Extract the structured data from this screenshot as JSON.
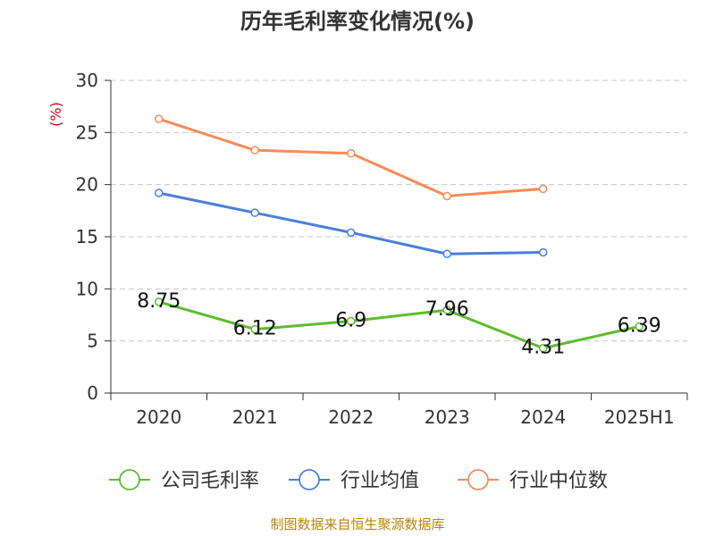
{
  "title": "历年毛利率变化情况(%)",
  "source": "制图数据来自恒生聚源数据库",
  "chart_data": {
    "type": "line",
    "title": "历年毛利率变化情况(%)",
    "ylabel": "(%)",
    "xlabel": "",
    "categories": [
      "2020",
      "2021",
      "2022",
      "2023",
      "2024",
      "2025H1"
    ],
    "ylim": [
      0,
      30
    ],
    "yticks": [
      "0",
      "5",
      "10",
      "15",
      "20",
      "25",
      "30"
    ],
    "grid": "horizontal-dashed",
    "legend_position": "bottom",
    "series": [
      {
        "name": "公司毛利率",
        "color": "#5cbd2c",
        "values": [
          8.75,
          6.12,
          6.9,
          7.96,
          4.31,
          6.39
        ],
        "labels": [
          "8.75",
          "6.12",
          "6.9",
          "7.96",
          "4.31",
          "6.39"
        ]
      },
      {
        "name": "行业均值",
        "color": "#4a7fd9",
        "values": [
          19.2,
          17.3,
          15.4,
          13.35,
          13.5,
          null
        ]
      },
      {
        "name": "行业中位数",
        "color": "#f68c57",
        "values": [
          26.3,
          23.3,
          23.0,
          18.9,
          19.6,
          null
        ]
      }
    ]
  }
}
